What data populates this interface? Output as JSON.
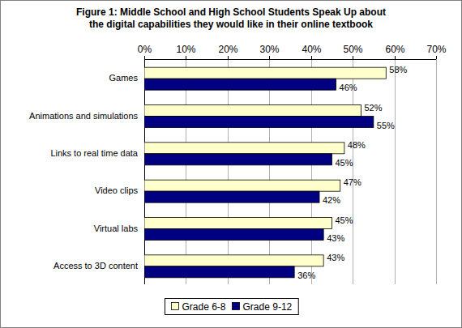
{
  "chart_data": {
    "type": "bar",
    "orientation": "horizontal",
    "title": "Figure 1: Middle School and High School Students Speak Up about\nthe digital capabilities they would like in their online textbook",
    "categories": [
      "Games",
      "Animations and simulations",
      "Links to real time data",
      "Video clips",
      "Virtual labs",
      "Access to 3D content"
    ],
    "series": [
      {
        "name": "Grade 6-8",
        "color": "#ffffcc",
        "values": [
          58,
          52,
          48,
          47,
          45,
          43
        ],
        "value_labels": [
          "58%",
          "52%",
          "48%",
          "47%",
          "45%",
          "43%"
        ]
      },
      {
        "name": "Grade 9-12",
        "color": "#000080",
        "values": [
          46,
          55,
          45,
          42,
          43,
          36
        ],
        "value_labels": [
          "46%",
          "55%",
          "45%",
          "42%",
          "43%",
          "36%"
        ]
      }
    ],
    "xlim": [
      0,
      70
    ],
    "xticks": [
      {
        "value": 0,
        "label": "0%"
      },
      {
        "value": 10,
        "label": "10%"
      },
      {
        "value": 20,
        "label": "20%"
      },
      {
        "value": 30,
        "label": "30%"
      },
      {
        "value": 40,
        "label": "40%"
      },
      {
        "value": 50,
        "label": "50%"
      },
      {
        "value": 60,
        "label": "60%"
      },
      {
        "value": 70,
        "label": "70%"
      }
    ],
    "grid": true,
    "data_labels": true,
    "legend": "bottom"
  }
}
